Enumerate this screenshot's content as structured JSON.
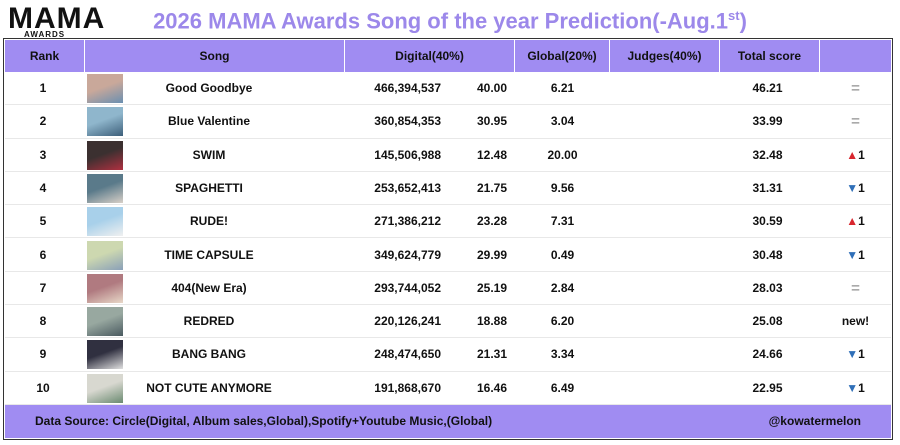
{
  "logo": {
    "main": "MAMA",
    "sub": "AWARDS"
  },
  "title": {
    "main": "2026 MAMA Awards Song of the year Prediction(-Aug.1",
    "sup": "st",
    "end": ")"
  },
  "table": {
    "headers": [
      "Rank",
      "Song",
      "Digital(40%)",
      "Global(20%)",
      "Judges(40%)",
      "Total score"
    ],
    "rows": [
      {
        "rank": "1",
        "song": "Good Goodbye",
        "digital_count": "466,394,537",
        "digital_score": "40.00",
        "global": "6.21",
        "total": "46.21",
        "change": {
          "arrow": "="
        }
      },
      {
        "rank": "2",
        "song": "Blue Valentine",
        "digital_count": "360,854,353",
        "digital_score": "30.95",
        "global": "3.04",
        "total": "33.99",
        "change": {
          "arrow": "="
        }
      },
      {
        "rank": "3",
        "song": "SWIM",
        "digital_count": "145,506,988",
        "digital_score": "12.48",
        "global": "20.00",
        "total": "32.48",
        "change": {
          "arrow": "▲",
          "value": "1"
        }
      },
      {
        "rank": "4",
        "song": "SPAGHETTI",
        "digital_count": "253,652,413",
        "digital_score": "21.75",
        "global": "9.56",
        "total": "31.31",
        "change": {
          "arrow": "▼",
          "value": "1"
        }
      },
      {
        "rank": "5",
        "song": "RUDE!",
        "digital_count": "271,386,212",
        "digital_score": "23.28",
        "global": "7.31",
        "total": "30.59",
        "change": {
          "arrow": "▲",
          "value": "1"
        }
      },
      {
        "rank": "6",
        "song": "TIME CAPSULE",
        "digital_count": "349,624,779",
        "digital_score": "29.99",
        "global": "0.49",
        "total": "30.48",
        "change": {
          "arrow": "▼",
          "value": "1"
        }
      },
      {
        "rank": "7",
        "song": "404(New Era)",
        "digital_count": "293,744,052",
        "digital_score": "25.19",
        "global": "2.84",
        "total": "28.03",
        "change": {
          "arrow": "="
        }
      },
      {
        "rank": "8",
        "song": "REDRED",
        "digital_count": "220,126,241",
        "digital_score": "18.88",
        "global": "6.20",
        "total": "25.08",
        "change": {
          "value": "new!"
        }
      },
      {
        "rank": "9",
        "song": "BANG BANG",
        "digital_count": "248,474,650",
        "digital_score": "21.31",
        "global": "3.34",
        "total": "24.66",
        "change": {
          "arrow": "▼",
          "value": "1"
        }
      },
      {
        "rank": "10",
        "song": "NOT CUTE ANYMORE",
        "digital_count": "191,868,670",
        "digital_score": "16.46",
        "global": "6.49",
        "total": "22.95",
        "change": {
          "arrow": "▼",
          "value": "1"
        }
      }
    ]
  },
  "footer": {
    "source": "Data Source: Circle(Digital, Album sales,Global),Spotify+Youtube Music,(Global)",
    "credit": "@kowatermelon"
  }
}
